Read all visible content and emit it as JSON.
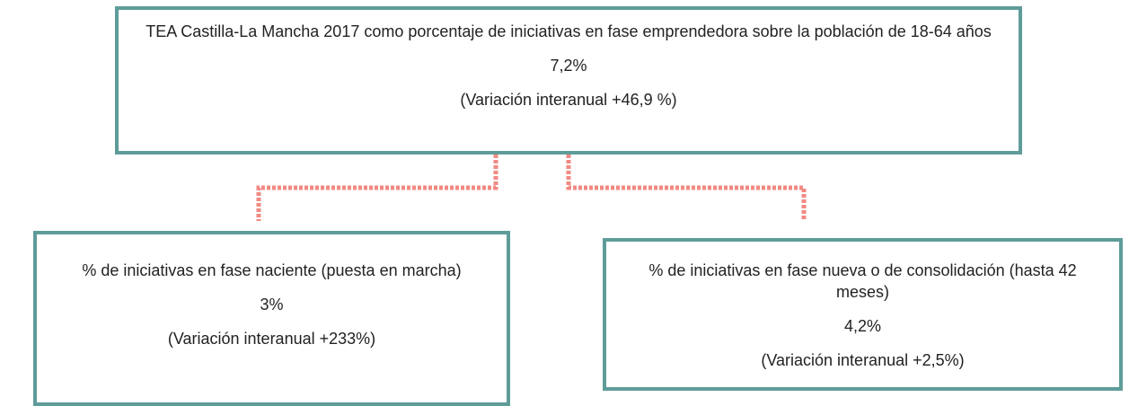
{
  "nodes": [
    {
      "label": "TEA Castilla-La Mancha 2017 como porcentaje de iniciativas en fase emprendedora sobre la población de 18-64 años",
      "value": "7,2%",
      "variation": "(Variación interanual +46,9 %)"
    },
    {
      "label": "% de iniciativas en fase naciente (puesta en marcha)",
      "value": "3%",
      "variation": "(Variación interanual +233%)"
    },
    {
      "label": "% de iniciativas en fase nueva o de consolidación (hasta 42 meses)",
      "value": "4,2%",
      "variation": "(Variación interanual +2,5%)"
    }
  ]
}
